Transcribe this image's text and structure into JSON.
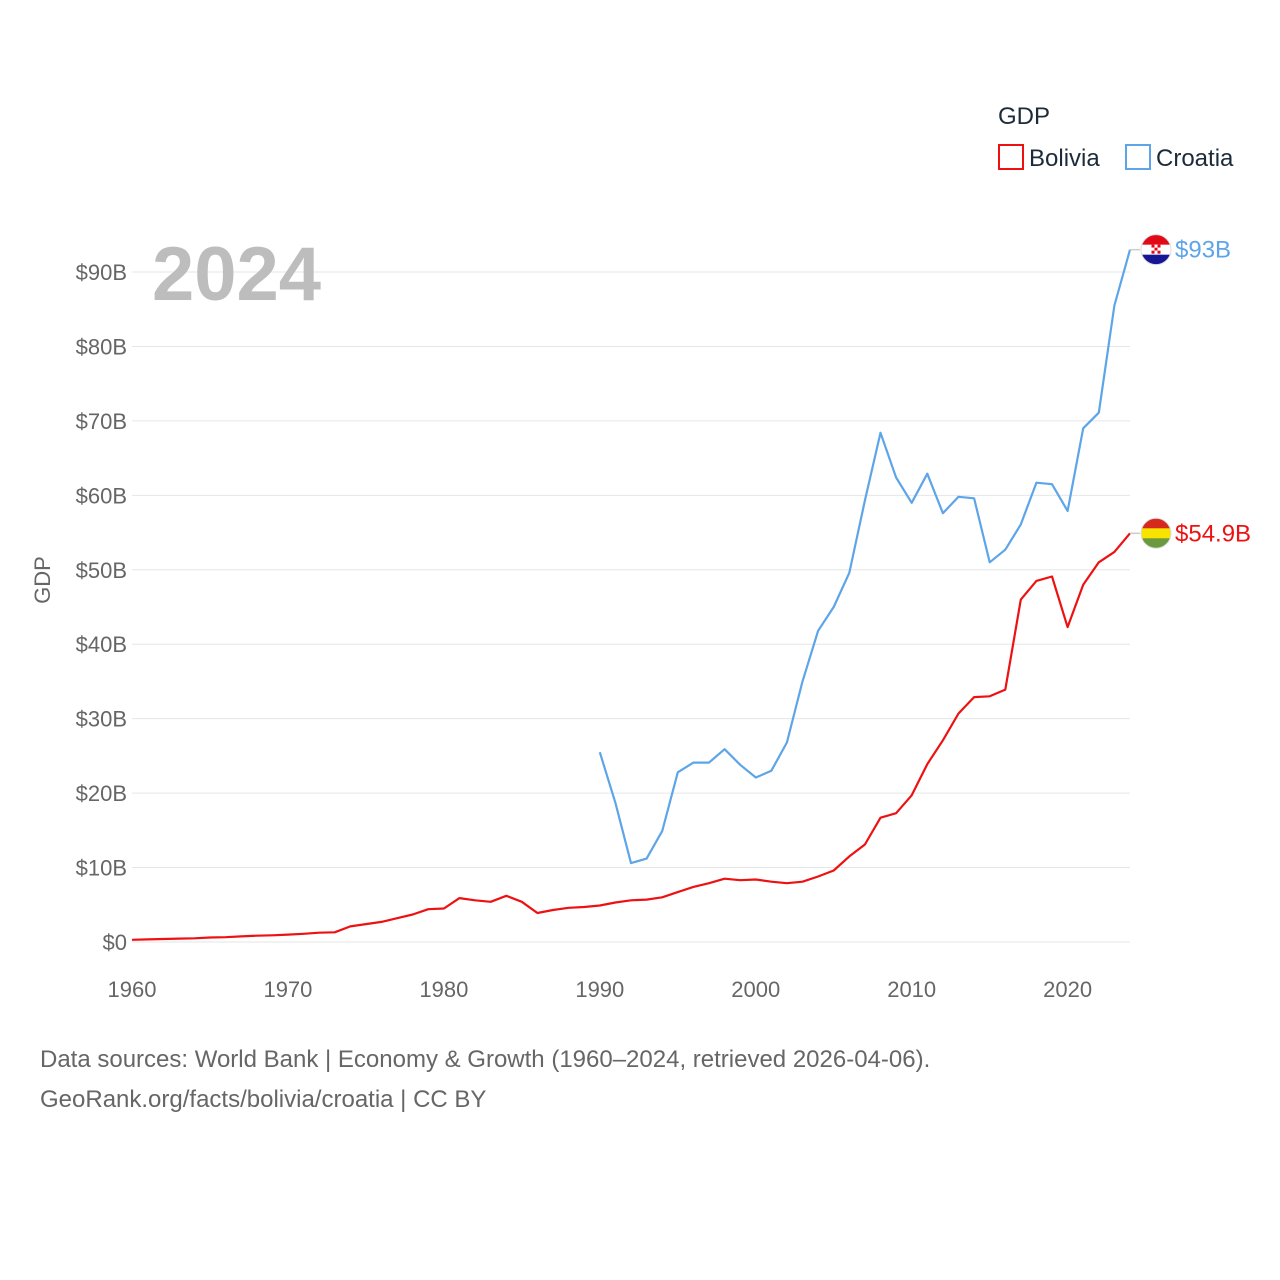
{
  "chart_data": {
    "type": "line",
    "title": "",
    "year_label": "2024",
    "xlabel": "",
    "ylabel": "GDP",
    "xlim": [
      1960,
      2024
    ],
    "ylim": [
      0,
      90
    ],
    "x_ticks": [
      1960,
      1970,
      1980,
      1990,
      2000,
      2010,
      2020
    ],
    "y_ticks": [
      {
        "value": 0,
        "label": "$0"
      },
      {
        "value": 10,
        "label": "$10B"
      },
      {
        "value": 20,
        "label": "$20B"
      },
      {
        "value": 30,
        "label": "$30B"
      },
      {
        "value": 40,
        "label": "$40B"
      },
      {
        "value": 50,
        "label": "$50B"
      },
      {
        "value": 60,
        "label": "$60B"
      },
      {
        "value": 70,
        "label": "$70B"
      },
      {
        "value": 80,
        "label": "$80B"
      },
      {
        "value": 90,
        "label": "$90B"
      }
    ],
    "legend": {
      "title": "GDP",
      "position": "top-right"
    },
    "series": [
      {
        "name": "Bolivia",
        "color": "#ee1111",
        "end_label": "$54.9B",
        "flag_icon": "bolivia-flag-icon",
        "flag_colors": [
          "#d52b1e",
          "#f9e300",
          "#6a9a3d"
        ],
        "x": [
          1960,
          1961,
          1962,
          1963,
          1964,
          1965,
          1966,
          1967,
          1968,
          1969,
          1970,
          1971,
          1972,
          1973,
          1974,
          1975,
          1976,
          1977,
          1978,
          1979,
          1980,
          1981,
          1982,
          1983,
          1984,
          1985,
          1986,
          1987,
          1988,
          1989,
          1990,
          1991,
          1992,
          1993,
          1994,
          1995,
          1996,
          1997,
          1998,
          1999,
          2000,
          2001,
          2002,
          2003,
          2004,
          2005,
          2006,
          2007,
          2008,
          2009,
          2010,
          2011,
          2012,
          2013,
          2014,
          2015,
          2016,
          2017,
          2018,
          2019,
          2020,
          2021,
          2022,
          2023,
          2024
        ],
        "values": [
          0.3,
          0.35,
          0.4,
          0.45,
          0.5,
          0.6,
          0.65,
          0.75,
          0.85,
          0.9,
          1.0,
          1.1,
          1.25,
          1.3,
          2.1,
          2.4,
          2.7,
          3.2,
          3.7,
          4.4,
          4.5,
          5.9,
          5.6,
          5.4,
          6.2,
          5.4,
          3.9,
          4.3,
          4.6,
          4.7,
          4.9,
          5.3,
          5.6,
          5.7,
          6.0,
          6.7,
          7.4,
          7.9,
          8.5,
          8.3,
          8.4,
          8.1,
          7.9,
          8.1,
          8.8,
          9.6,
          11.5,
          13.1,
          16.7,
          17.3,
          19.7,
          23.9,
          27.1,
          30.7,
          32.9,
          33.0,
          33.9,
          46.0,
          48.5,
          49.1,
          42.3,
          48.0,
          51.0,
          52.4,
          54.9
        ]
      },
      {
        "name": "Croatia",
        "color": "#5da5e8",
        "end_label": "$93B",
        "flag_icon": "croatia-flag-icon",
        "flag_colors": [
          "#e30a17",
          "#ffffff",
          "#171796"
        ],
        "x": [
          1990,
          1991,
          1992,
          1993,
          1994,
          1995,
          1996,
          1997,
          1998,
          1999,
          2000,
          2001,
          2002,
          2003,
          2004,
          2005,
          2006,
          2007,
          2008,
          2009,
          2010,
          2011,
          2012,
          2013,
          2014,
          2015,
          2016,
          2017,
          2018,
          2019,
          2020,
          2021,
          2022,
          2023,
          2024
        ],
        "values": [
          25.5,
          18.7,
          10.6,
          11.2,
          14.9,
          22.8,
          24.1,
          24.1,
          25.9,
          23.8,
          22.1,
          23.0,
          26.8,
          35.0,
          41.8,
          45.0,
          49.6,
          59.3,
          68.4,
          62.4,
          59.0,
          62.9,
          57.6,
          59.8,
          59.6,
          51.0,
          52.7,
          56.1,
          61.7,
          61.5,
          57.9,
          69.0,
          71.1,
          85.5,
          93.0
        ]
      }
    ]
  },
  "footer": {
    "line1": "Data sources: World Bank | Economy & Growth (1960–2024, retrieved 2026-04-06).",
    "line2": "GeoRank.org/facts/bolivia/croatia | CC BY"
  }
}
